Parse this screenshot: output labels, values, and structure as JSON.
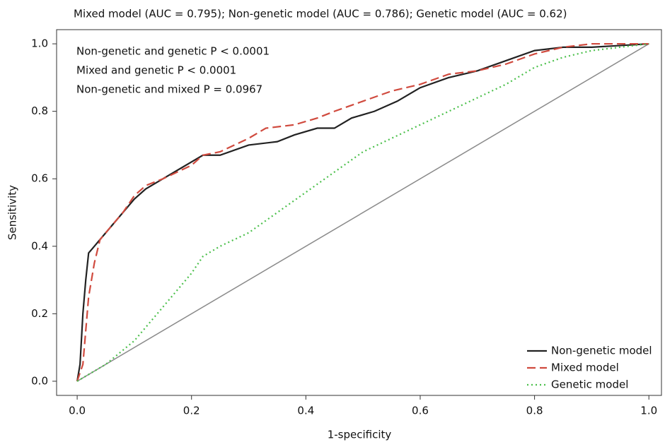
{
  "chart_data": {
    "type": "line",
    "title": "Mixed model (AUC = 0.795); Non-genetic model (AUC = 0.786); Genetic model (AUC = 0.62)",
    "x_label": "1-specificity",
    "y_label": "Sensitivity",
    "annotations": [
      "Non-genetic and genetic P < 0.0001",
      "Mixed and genetic P < 0.0001",
      "Non-genetic and mixed P = 0.0967"
    ],
    "xlim": [
      -0.036,
      1.022
    ],
    "ylim": [
      -0.042,
      1.042
    ],
    "xticks": [
      {
        "value": 0,
        "label": "0.0"
      },
      0.2,
      0.4,
      0.6,
      0.8,
      {
        "value": 1,
        "label": "1.0"
      }
    ],
    "yticks": [
      {
        "value": 0,
        "label": "0.0"
      },
      0.2,
      0.4,
      0.6,
      0.8,
      {
        "value": 1,
        "label": "1.0"
      }
    ],
    "legend": "lower right",
    "reference": {
      "color": "#8a8a8a",
      "x": [
        0,
        1
      ],
      "values": [
        0,
        1
      ]
    },
    "series": [
      {
        "name": "Non-genetic model",
        "color": "#222222",
        "dash": "solid",
        "x": [
          0,
          0.005,
          0.01,
          0.015,
          0.02,
          0.03,
          0.04,
          0.06,
          0.08,
          0.1,
          0.12,
          0.15,
          0.18,
          0.2,
          0.22,
          0.25,
          0.3,
          0.35,
          0.38,
          0.42,
          0.45,
          0.48,
          0.52,
          0.56,
          0.6,
          0.65,
          0.7,
          0.75,
          0.8,
          0.85,
          0.9,
          1
        ],
        "values": [
          0,
          0.05,
          0.2,
          0.3,
          0.38,
          0.4,
          0.42,
          0.46,
          0.5,
          0.54,
          0.57,
          0.6,
          0.63,
          0.65,
          0.67,
          0.67,
          0.7,
          0.71,
          0.73,
          0.75,
          0.75,
          0.78,
          0.8,
          0.83,
          0.87,
          0.9,
          0.92,
          0.95,
          0.98,
          0.99,
          0.99,
          1
        ]
      },
      {
        "name": "Mixed model",
        "color": "#d04a3e",
        "dash": "dashed",
        "x": [
          0,
          0.01,
          0.015,
          0.02,
          0.03,
          0.04,
          0.06,
          0.08,
          0.1,
          0.12,
          0.15,
          0.2,
          0.22,
          0.25,
          0.3,
          0.33,
          0.38,
          0.42,
          0.45,
          0.5,
          0.55,
          0.6,
          0.65,
          0.7,
          0.75,
          0.8,
          0.85,
          0.9,
          1
        ],
        "values": [
          0,
          0.05,
          0.15,
          0.25,
          0.35,
          0.42,
          0.46,
          0.5,
          0.55,
          0.58,
          0.6,
          0.64,
          0.67,
          0.68,
          0.72,
          0.75,
          0.76,
          0.78,
          0.8,
          0.83,
          0.86,
          0.88,
          0.91,
          0.92,
          0.94,
          0.97,
          0.99,
          1,
          1
        ]
      },
      {
        "name": "Genetic model",
        "color": "#4cc04c",
        "dash": "dotted",
        "x": [
          0,
          0.05,
          0.1,
          0.15,
          0.2,
          0.22,
          0.25,
          0.3,
          0.35,
          0.4,
          0.45,
          0.5,
          0.55,
          0.6,
          0.65,
          0.7,
          0.75,
          0.8,
          0.85,
          0.9,
          1
        ],
        "values": [
          0,
          0.05,
          0.12,
          0.22,
          0.32,
          0.37,
          0.4,
          0.44,
          0.5,
          0.56,
          0.62,
          0.68,
          0.72,
          0.76,
          0.8,
          0.84,
          0.88,
          0.93,
          0.96,
          0.98,
          1
        ]
      }
    ]
  }
}
